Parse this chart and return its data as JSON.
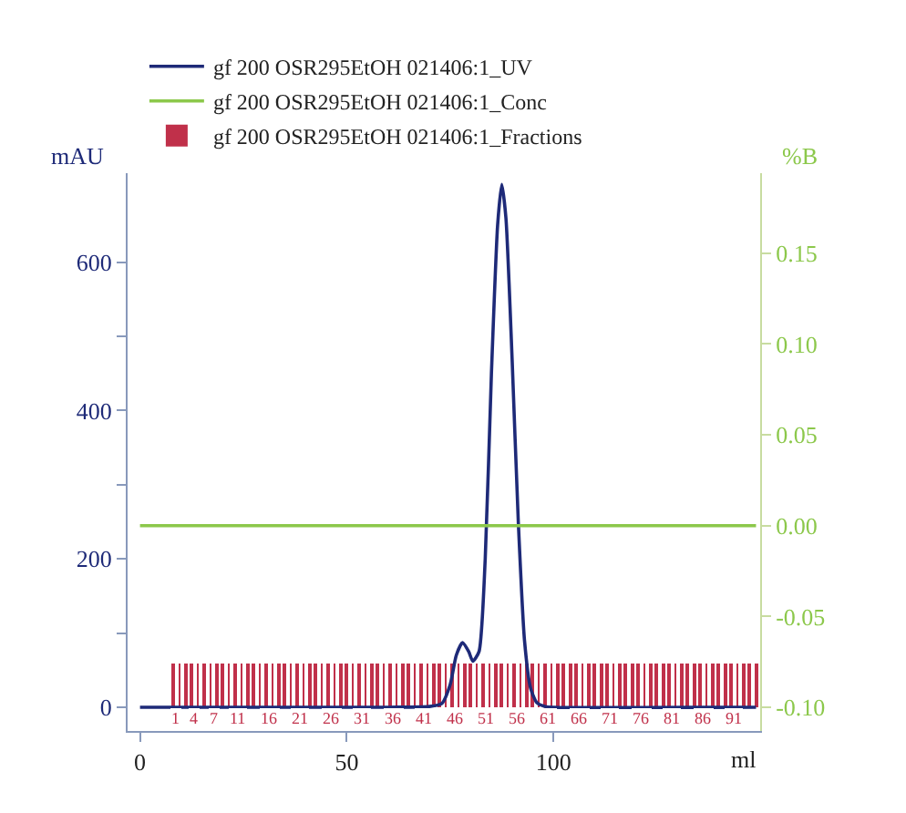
{
  "chart_data": {
    "type": "line",
    "xlabel": "ml",
    "ylabel": "mAU",
    "y2label": "%B",
    "xlim": [
      -3,
      150
    ],
    "xticks": [
      0,
      50,
      100
    ],
    "ylim": [
      -32,
      720
    ],
    "yticks": [
      0,
      {
        "value": 100,
        "label": null
      },
      200,
      {
        "value": 300,
        "label": null
      },
      400,
      {
        "value": 500,
        "label": null
      },
      600
    ],
    "y2lim": [
      -0.113,
      0.194
    ],
    "y2ticks": [
      {
        "value": -0.1,
        "label": "-0.10"
      },
      -0.05,
      {
        "value": 0.0,
        "label": "0.00"
      },
      0.05,
      {
        "value": 0.1,
        "label": "0.10"
      },
      0.15
    ],
    "legend": "top left",
    "series": [
      {
        "name": "gf 200 OSR295EtOH 021406:1_Fractions",
        "type": "bar",
        "color": "#c0304a",
        "x": [
          8,
          9.5,
          11,
          12.5,
          14,
          15.5,
          17,
          18.5,
          20,
          21.5,
          23,
          24.5,
          26,
          27.5,
          29,
          30.5,
          32,
          33.5,
          35,
          36.5,
          38,
          39.5,
          41,
          42.5,
          44,
          45.5,
          47,
          48.5,
          50,
          51.5,
          53,
          54.5,
          56,
          57.5,
          59,
          60.5,
          62,
          63.5,
          65,
          66.5,
          68,
          69.5,
          71,
          72.5,
          74,
          75.5,
          77,
          78.5,
          80,
          81.5,
          83,
          84.5,
          86,
          87.5,
          89,
          90.5,
          92,
          93.5,
          95,
          96.5,
          98,
          99.5,
          101,
          102.5,
          104,
          105.5,
          107,
          108.5,
          110,
          111.5,
          113,
          114.5,
          116,
          117.5,
          119,
          120.5,
          122,
          123.5,
          125,
          126.5,
          128,
          129.5,
          131,
          132.5,
          134,
          135.5,
          137,
          138.5,
          140,
          141.5,
          143,
          144.5,
          146,
          147.5,
          149
        ],
        "values": [
          60,
          60,
          60,
          60,
          60,
          60,
          60,
          60,
          60,
          60,
          60,
          60,
          60,
          60,
          60,
          60,
          60,
          60,
          60,
          60,
          60,
          60,
          60,
          60,
          60,
          60,
          60,
          60,
          60,
          60,
          60,
          60,
          60,
          60,
          60,
          60,
          60,
          60,
          60,
          60,
          60,
          60,
          60,
          60,
          60,
          60,
          60,
          60,
          60,
          60,
          60,
          60,
          60,
          60,
          60,
          60,
          60,
          60,
          60,
          60,
          60,
          60,
          60,
          60,
          60,
          60,
          60,
          60,
          60,
          60,
          60,
          60,
          60,
          60,
          60,
          60,
          60,
          60,
          60,
          60,
          60,
          60,
          60,
          60,
          60,
          60,
          60,
          60,
          60,
          60,
          60,
          60,
          60,
          60,
          60
        ]
      },
      {
        "name": "gf 200 OSR295EtOH 021406:1_Conc",
        "type": "line",
        "axis": "y2",
        "color": "#8cc84b",
        "x": [
          0,
          149
        ],
        "values": [
          0.0,
          0.0
        ]
      },
      {
        "name": "gf 200 OSR295EtOH 021406:1_UV",
        "color": "#1e2a78",
        "x": [
          0,
          10,
          60,
          70,
          73,
          75,
          76.5,
          78,
          79.5,
          80.5,
          82,
          83.5,
          85,
          86.5,
          87.5,
          88.5,
          90,
          91.5,
          93,
          94.5,
          96,
          98,
          100,
          149
        ],
        "values": [
          0,
          0,
          0,
          1,
          5,
          30,
          70,
          87,
          75,
          62,
          75,
          200,
          450,
          650,
          705,
          660,
          470,
          250,
          90,
          25,
          6,
          1,
          0,
          0
        ]
      }
    ],
    "annotations": [
      {
        "text": "1",
        "x": 8.75,
        "y": -16
      },
      {
        "text": "4",
        "x": 13.25,
        "y": -16
      },
      {
        "text": "7",
        "x": 17.75,
        "y": -16
      },
      {
        "text": "11",
        "x": 23.75,
        "y": -16
      },
      {
        "text": "16",
        "x": 31.25,
        "y": -16
      },
      {
        "text": "21",
        "x": 38.75,
        "y": -16
      },
      {
        "text": "26",
        "x": 46.25,
        "y": -16
      },
      {
        "text": "31",
        "x": 53.75,
        "y": -16
      },
      {
        "text": "36",
        "x": 61.25,
        "y": -16
      },
      {
        "text": "41",
        "x": 68.75,
        "y": -16
      },
      {
        "text": "46",
        "x": 76.25,
        "y": -16
      },
      {
        "text": "51",
        "x": 83.75,
        "y": -16
      },
      {
        "text": "56",
        "x": 91.25,
        "y": -16
      },
      {
        "text": "61",
        "x": 98.75,
        "y": -16
      },
      {
        "text": "66",
        "x": 106.25,
        "y": -16
      },
      {
        "text": "71",
        "x": 113.75,
        "y": -16
      },
      {
        "text": "76",
        "x": 121.25,
        "y": -16
      },
      {
        "text": "81",
        "x": 128.75,
        "y": -16
      },
      {
        "text": "86",
        "x": 136.25,
        "y": -16
      },
      {
        "text": "91",
        "x": 143.75,
        "y": -16
      }
    ]
  }
}
